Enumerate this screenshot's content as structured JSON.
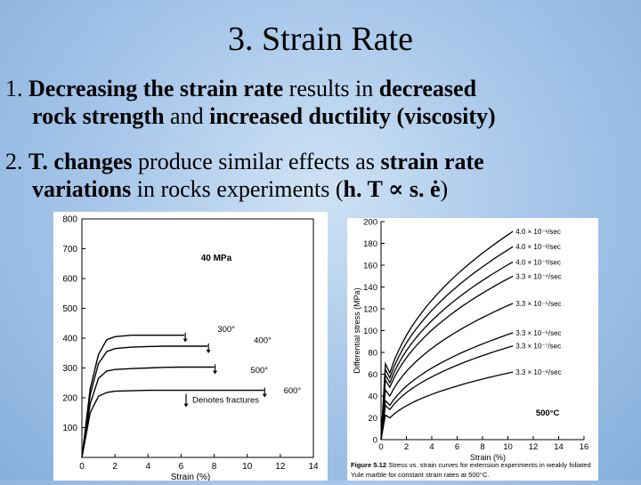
{
  "slide": {
    "title": "3. Strain Rate",
    "point1": {
      "num": "1. ",
      "b1": "Decreasing the strain rate",
      "t1": " results in ",
      "b2": "decreased",
      "b3": "rock strength",
      "t2": " and ",
      "b4": "increased ductility (viscosity)"
    },
    "point2": {
      "num": "2. ",
      "b1": "T. changes",
      "t1": " produce similar effects as ",
      "b2": "strain rate",
      "b3": "variations",
      "t2": " in rocks experiments (",
      "b4": "h. T ∝ s. ė",
      "t3": ")"
    }
  },
  "chart_data": [
    {
      "type": "line",
      "title": "",
      "xlabel": "Strain (%)",
      "ylabel": "",
      "xlim": [
        0,
        14
      ],
      "ylim": [
        0,
        800
      ],
      "x_ticks": [
        "0",
        "2",
        "4",
        "6",
        "8",
        "10",
        "12",
        "14"
      ],
      "y_ticks": [
        "100",
        "200",
        "300",
        "400",
        "500",
        "600",
        "700",
        "800"
      ],
      "annotation": "40 MPa",
      "legend_note": "Denotes fractures",
      "series": [
        {
          "name": "300°",
          "x": [
            0,
            0.5,
            1,
            1.5,
            2,
            3,
            4,
            5,
            6,
            6.2
          ],
          "y": [
            0,
            230,
            345,
            395,
            405,
            410,
            410,
            410,
            410,
            410
          ]
        },
        {
          "name": "400°",
          "x": [
            0,
            0.5,
            1,
            1.5,
            2,
            3,
            4,
            5,
            6,
            7,
            7.6
          ],
          "y": [
            0,
            210,
            315,
            355,
            365,
            370,
            372,
            373,
            373,
            373,
            373
          ]
        },
        {
          "name": "500°",
          "x": [
            0,
            0.5,
            1,
            1.5,
            2,
            3,
            4,
            5,
            6,
            7,
            8
          ],
          "y": [
            0,
            180,
            265,
            290,
            295,
            298,
            300,
            302,
            303,
            303,
            303
          ]
        },
        {
          "name": "600°",
          "x": [
            0,
            0.5,
            1,
            1.5,
            2,
            4,
            6,
            8,
            10,
            11
          ],
          "y": [
            0,
            150,
            205,
            218,
            222,
            225,
            225,
            225,
            225,
            225
          ]
        }
      ]
    },
    {
      "type": "line",
      "title": "",
      "xlabel": "Strain (%)",
      "ylabel": "Differential stress (MPa)",
      "xlim": [
        0,
        16
      ],
      "ylim": [
        0,
        200
      ],
      "x_ticks": [
        "0",
        "2",
        "4",
        "6",
        "8",
        "10",
        "12",
        "14",
        "16"
      ],
      "y_ticks": [
        "0",
        "20",
        "40",
        "60",
        "80",
        "100",
        "120",
        "140",
        "160",
        "180",
        "200"
      ],
      "annotation": "500°C",
      "caption_bold": "Figure 5.12",
      "caption": "Stress vs. strain curves for extension experiments in weakly foliated Yule marble for constant strain rates at 500°C.",
      "series": [
        {
          "name": "4.0 × 10⁻¹/sec",
          "final": 191
        },
        {
          "name": "4.0 × 10⁻²/sec",
          "final": 177
        },
        {
          "name": "4.0 × 10⁻³/sec",
          "final": 163
        },
        {
          "name": "3.3 × 10⁻⁴/sec",
          "final": 150
        },
        {
          "name": "3.3 × 10⁻⁵/sec",
          "final": 125
        },
        {
          "name": "3.3 × 10⁻⁶/sec",
          "final": 98
        },
        {
          "name": "3.3 × 10⁻⁷/sec",
          "final": 86
        },
        {
          "name": "3.3 × 10⁻⁸/sec",
          "final": 62
        }
      ]
    }
  ]
}
